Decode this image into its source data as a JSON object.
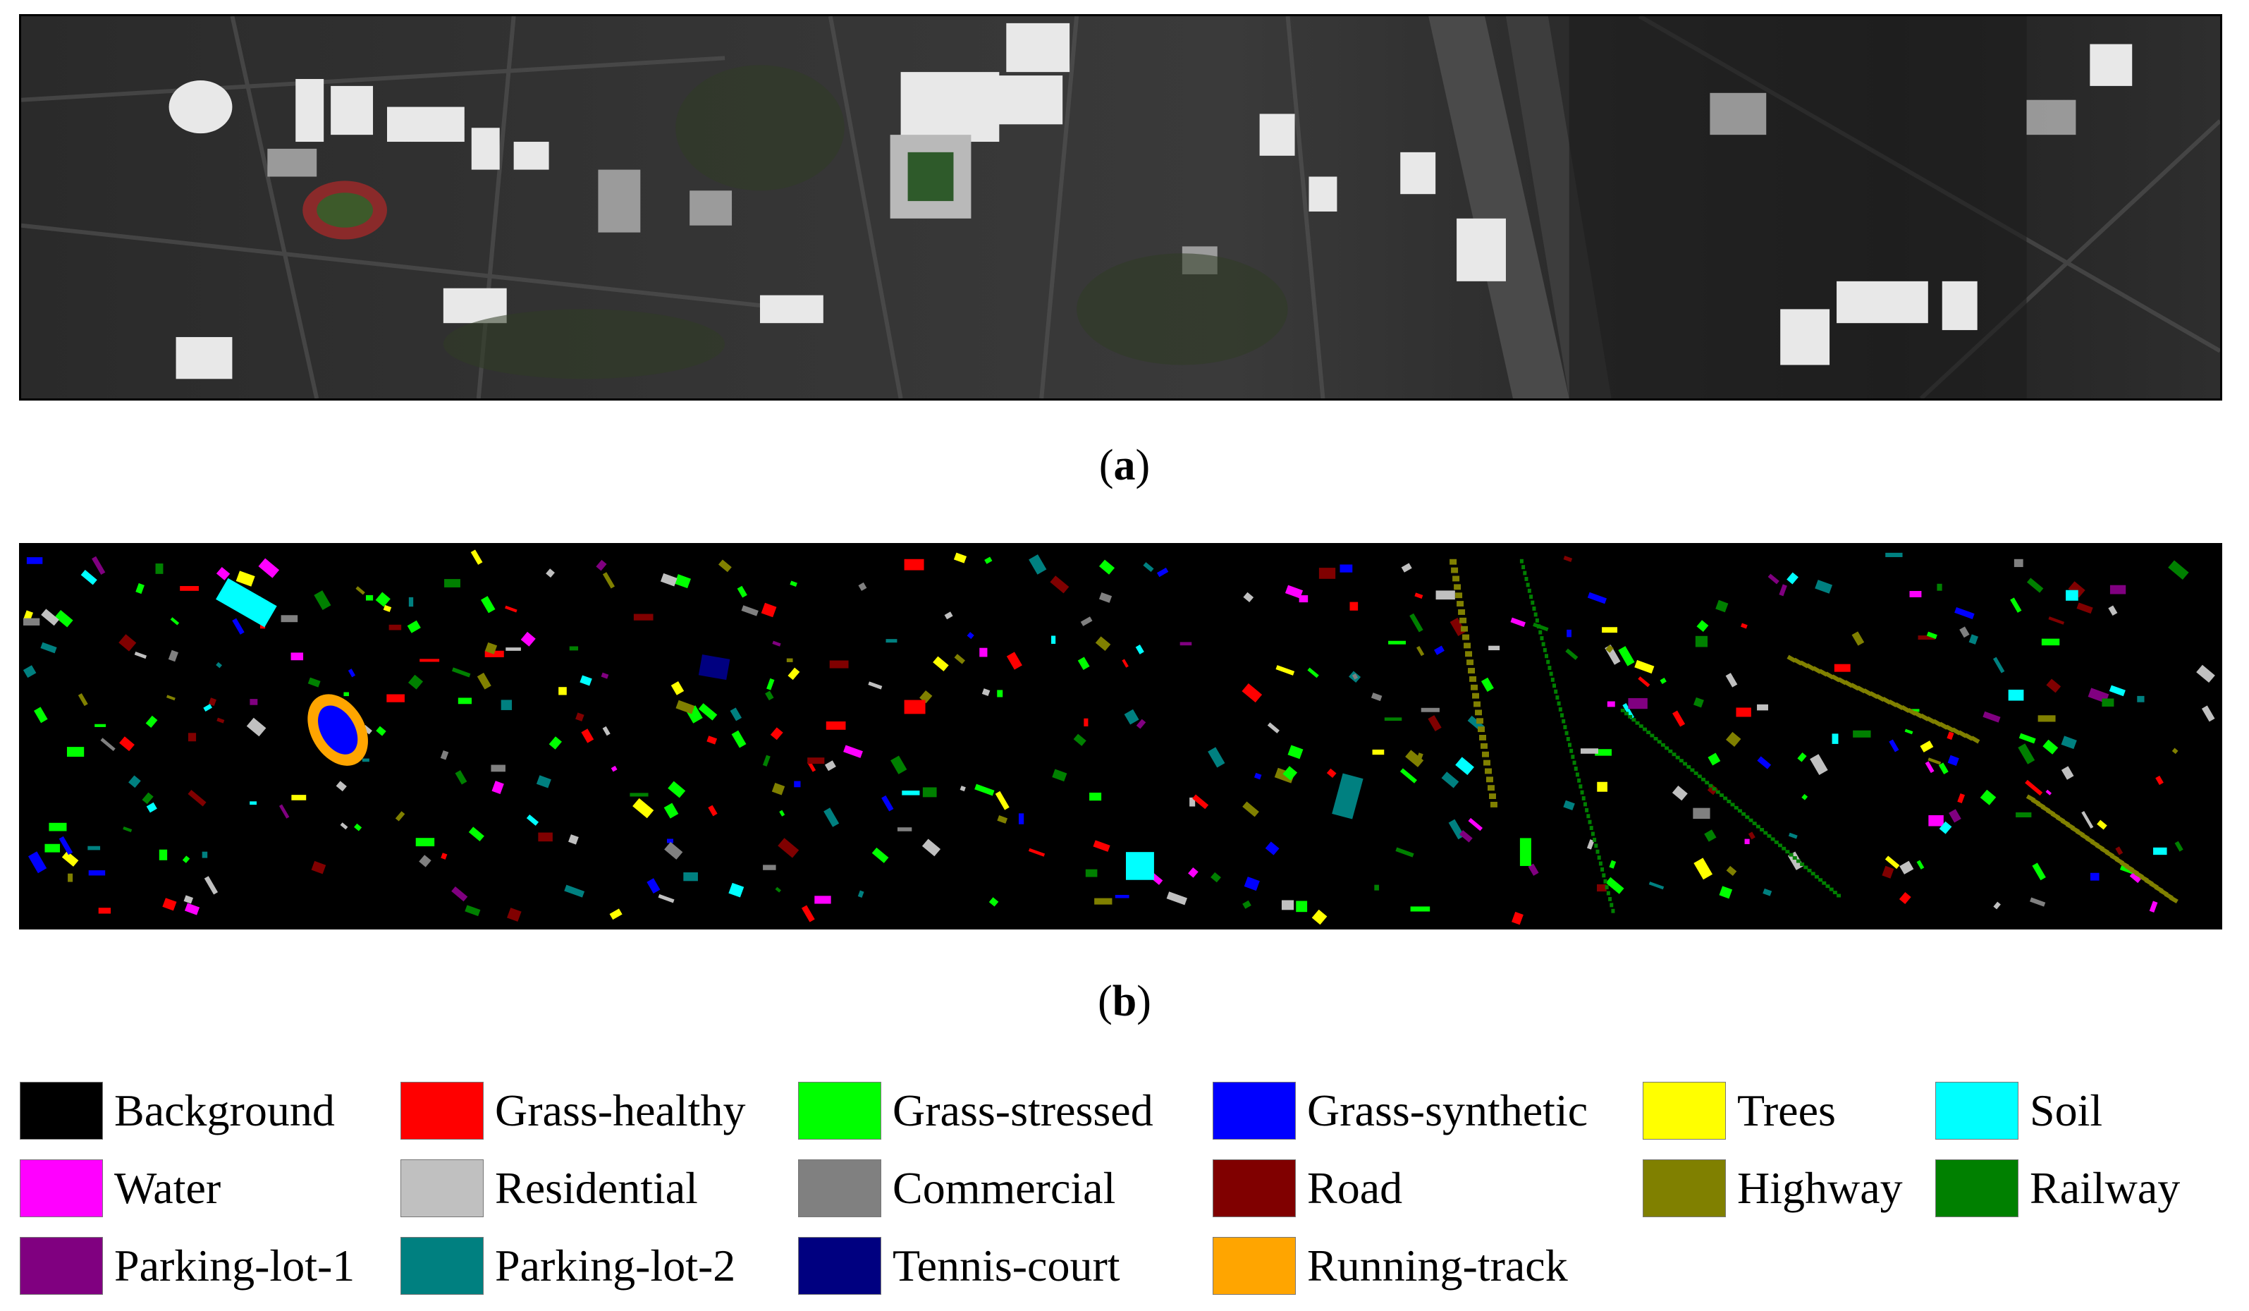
{
  "captions": {
    "a": "a",
    "b": "b"
  },
  "legend": [
    {
      "label": "Background",
      "color": "#000000"
    },
    {
      "label": "Grass-healthy",
      "color": "#ff0000"
    },
    {
      "label": "Grass-stressed",
      "color": "#00ff00"
    },
    {
      "label": "Grass-synthetic",
      "color": "#0000ff"
    },
    {
      "label": "Trees",
      "color": "#ffff00"
    },
    {
      "label": "Soil",
      "color": "#00ffff"
    },
    {
      "label": "Water",
      "color": "#ff00ff"
    },
    {
      "label": "Residential",
      "color": "#c0c0c0"
    },
    {
      "label": "Commercial",
      "color": "#808080"
    },
    {
      "label": "Road",
      "color": "#800000"
    },
    {
      "label": "Highway",
      "color": "#808000"
    },
    {
      "label": "Railway",
      "color": "#008000"
    },
    {
      "label": "Parking-lot-1",
      "color": "#800080"
    },
    {
      "label": "Parking-lot-2",
      "color": "#008080"
    },
    {
      "label": "Tennis-court",
      "color": "#000080"
    },
    {
      "label": "Running-track",
      "color": "#ffa500"
    }
  ]
}
